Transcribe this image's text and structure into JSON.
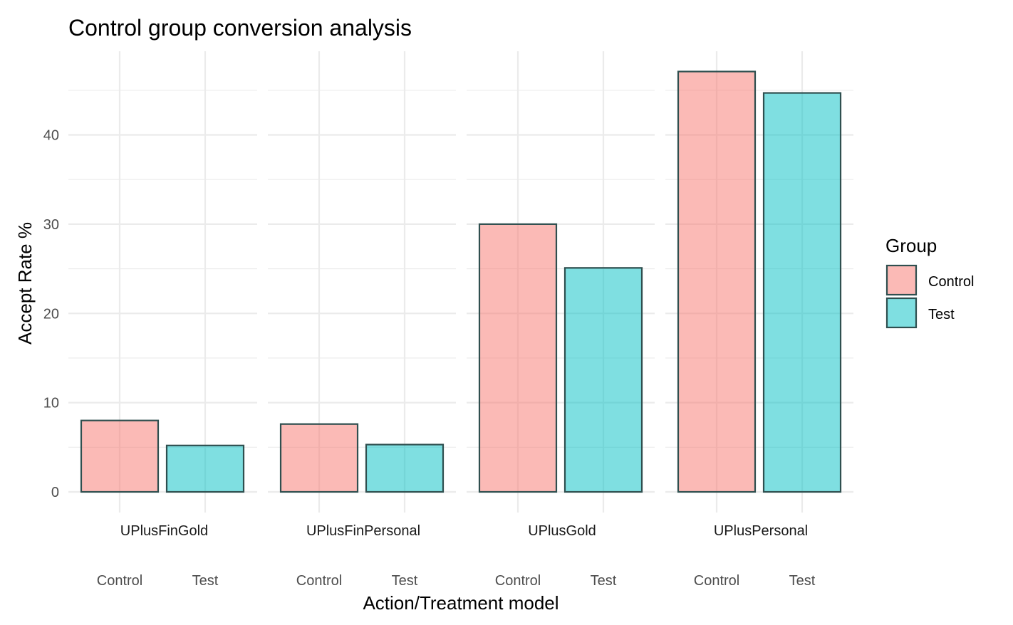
{
  "chart_data": {
    "type": "bar",
    "title": "Control group conversion analysis",
    "xlabel": "Action/Treatment model",
    "ylabel": "Accept Rate %",
    "ylim": [
      0,
      49
    ],
    "yticks": [
      0,
      10,
      20,
      30,
      40
    ],
    "grid": true,
    "legend_position": "right",
    "legend": {
      "title": "Group",
      "entries": [
        "Control",
        "Test"
      ]
    },
    "categories": [
      "Control",
      "Test"
    ],
    "colors": {
      "Control": "#f8766d",
      "Test": "#00bfc4",
      "bar_outline": "#2f4f4f",
      "grid": "#ebebeb"
    },
    "facets": [
      {
        "name": "UPlusFinGold",
        "values": [
          8.0,
          5.2
        ]
      },
      {
        "name": "UPlusFinPersonal",
        "values": [
          7.6,
          5.3
        ]
      },
      {
        "name": "UPlusGold",
        "values": [
          30.0,
          25.1
        ]
      },
      {
        "name": "UPlusPersonal",
        "values": [
          47.1,
          44.7
        ]
      }
    ]
  }
}
